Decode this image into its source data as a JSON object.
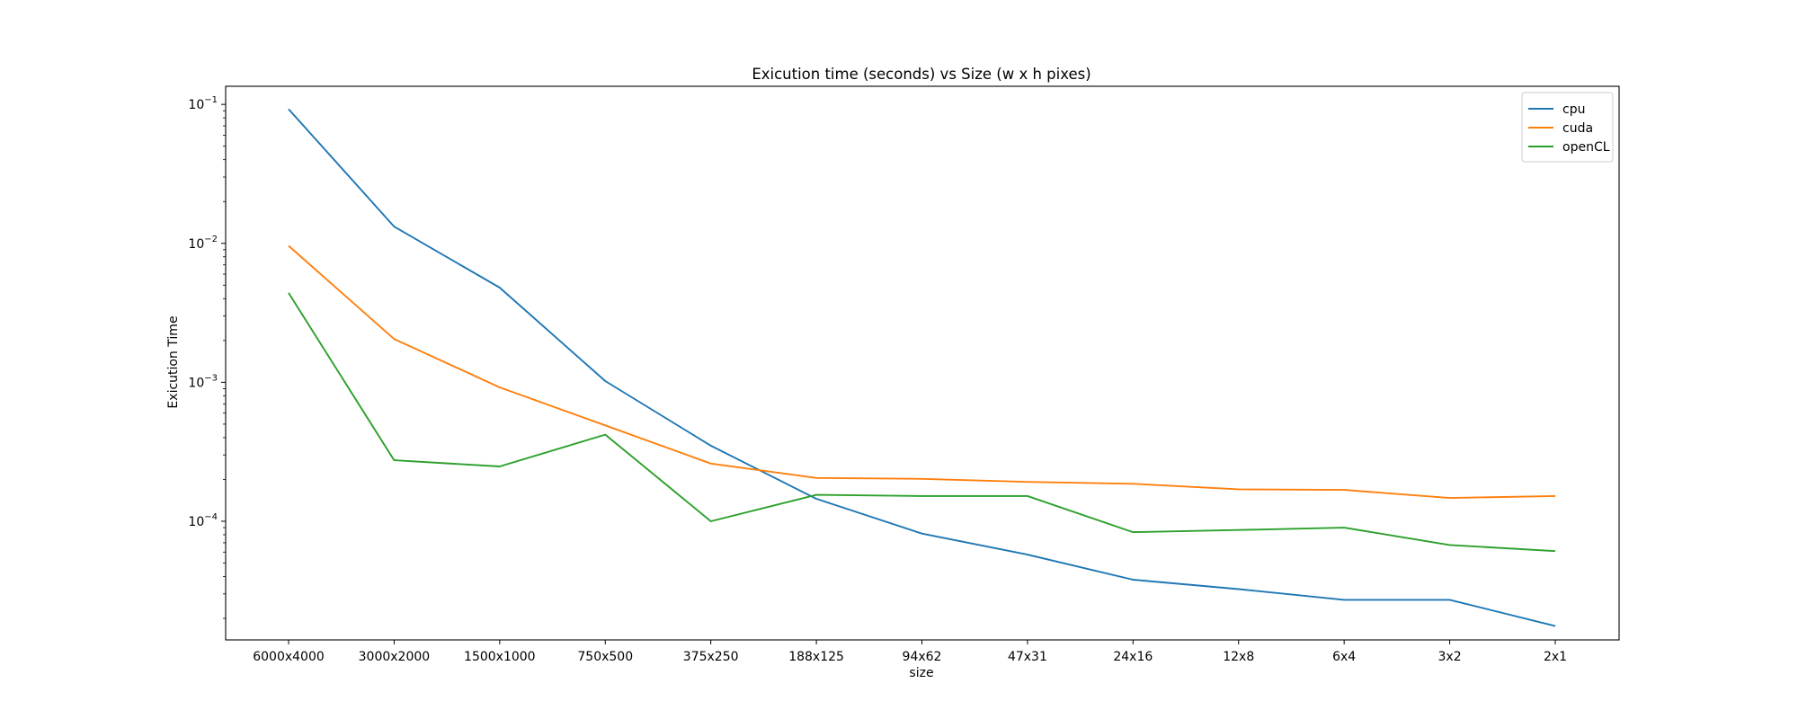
{
  "chart_data": {
    "type": "line",
    "title": "Exicution time (seconds) vs Size (w x h pixes)",
    "xlabel": "size",
    "ylabel": "Exicution Time",
    "yscale": "log",
    "ylim": [
      1.4e-05,
      0.135
    ],
    "y_ticks": [
      {
        "value": 0.1,
        "mantissa": "10",
        "exp": "−1"
      },
      {
        "value": 0.01,
        "mantissa": "10",
        "exp": "−2"
      },
      {
        "value": 0.001,
        "mantissa": "10",
        "exp": "−3"
      },
      {
        "value": 0.0001,
        "mantissa": "10",
        "exp": "−4"
      }
    ],
    "categories": [
      "6000x4000",
      "3000x2000",
      "1500x1000",
      "750x500",
      "375x250",
      "188x125",
      "94x62",
      "47x31",
      "24x16",
      "12x8",
      "6x4",
      "3x2",
      "2x1"
    ],
    "series": [
      {
        "name": "cpu",
        "color": "#1f77b4",
        "values": [
          0.0925,
          0.0132,
          0.0048,
          0.00102,
          0.00035,
          0.000145,
          8.15e-05,
          5.75e-05,
          3.8e-05,
          3.25e-05,
          2.72e-05,
          2.72e-05,
          1.76e-05
        ]
      },
      {
        "name": "cuda",
        "color": "#ff7f0e",
        "values": [
          0.0096,
          0.00205,
          0.00092,
          0.00049,
          0.00026,
          0.000205,
          0.000202,
          0.000192,
          0.000186,
          0.00017,
          0.000168,
          0.000147,
          0.000152
        ]
      },
      {
        "name": "openCL",
        "color": "#2ca02c",
        "values": [
          0.0044,
          0.000275,
          0.000248,
          0.00042,
          0.0001,
          0.000155,
          0.000152,
          0.000152,
          8.35e-05,
          8.65e-05,
          9e-05,
          6.75e-05,
          6.1e-05
        ]
      }
    ],
    "grid": false,
    "legend_position": "top-right"
  }
}
